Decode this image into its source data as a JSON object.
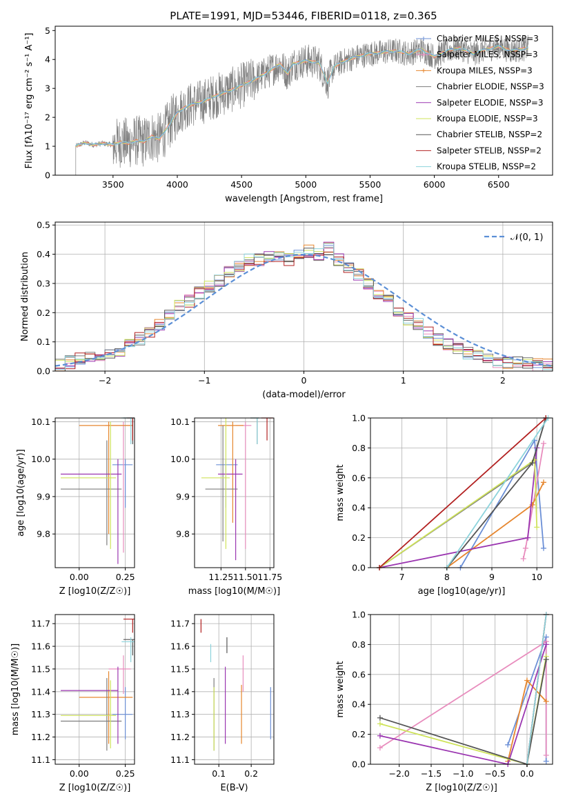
{
  "colors": {
    "chabrier_miles": "#6b8fd6",
    "salpeter_miles": "#e88cbd",
    "kroupa_miles": "#e6862e",
    "chabrier_elodie": "#7c7c7c",
    "salpeter_elodie": "#9a35b0",
    "kroupa_elodie": "#cfe35a",
    "chabrier_stelib": "#555555",
    "salpeter_stelib": "#b22020",
    "kroupa_stelib": "#8cd3dc",
    "normal": "#5b8fd6",
    "grid": "#b0b0b0"
  },
  "chart_data": [
    {
      "id": "spectrum",
      "type": "line",
      "title": "PLATE=1991, MJD=53446, FIBERID=0118, z=0.365",
      "xlabel": "wavelength [Angstrom, rest frame]",
      "ylabel": "Flux [fλ10⁻¹⁷ erg cm⁻² s⁻¹ A⁻¹]",
      "xlim": [
        3050,
        6920
      ],
      "ylim": [
        0,
        5.15
      ],
      "xticks": [
        3500,
        4000,
        4500,
        5000,
        5500,
        6000,
        6500
      ],
      "yticks": [
        0,
        1,
        2,
        3,
        4,
        5
      ],
      "grid": false,
      "legend_position": "right",
      "legend": [
        {
          "label": "Chabrier MILES, N_SSP=3",
          "color_key": "chabrier_miles"
        },
        {
          "label": "Salpeter MILES, N_SSP=3",
          "color_key": "salpeter_miles"
        },
        {
          "label": "Kroupa MILES, N_SSP=3",
          "color_key": "kroupa_miles"
        },
        {
          "label": "Chabrier ELODIE, N_SSP=3",
          "color_key": "chabrier_elodie"
        },
        {
          "label": "Salpeter ELODIE, N_SSP=3",
          "color_key": "salpeter_elodie"
        },
        {
          "label": "Kroupa ELODIE, N_SSP=3",
          "color_key": "kroupa_elodie"
        },
        {
          "label": "Chabrier STELIB, N_SSP=2",
          "color_key": "chabrier_stelib"
        },
        {
          "label": "Salpeter STELIB, N_SSP=2",
          "color_key": "salpeter_stelib"
        },
        {
          "label": "Kroupa STELIB, N_SSP=2",
          "color_key": "kroupa_stelib"
        }
      ],
      "model_curve": {
        "wavelength": [
          3210,
          3280,
          3350,
          3420,
          3500,
          3560,
          3620,
          3680,
          3740,
          3800,
          3860,
          3900,
          3960,
          4000,
          4060,
          4120,
          4200,
          4300,
          4400,
          4500,
          4600,
          4700,
          4800,
          4860,
          4900,
          5000,
          5100,
          5170,
          5220,
          5300,
          5400,
          5500,
          5600,
          5700,
          5800,
          5900,
          6000,
          6100,
          6200,
          6300,
          6400,
          6500,
          6600,
          6730
        ],
        "flux": [
          1.0,
          1.12,
          1.05,
          1.1,
          1.05,
          1.15,
          1.1,
          1.2,
          1.15,
          1.35,
          1.25,
          1.5,
          1.9,
          2.15,
          2.35,
          2.45,
          2.55,
          2.75,
          2.9,
          3.1,
          3.3,
          3.55,
          3.85,
          3.5,
          3.85,
          3.95,
          3.9,
          3.2,
          3.75,
          3.95,
          4.1,
          4.2,
          4.25,
          4.3,
          4.2,
          4.35,
          4.1,
          4.3,
          4.4,
          4.2,
          4.35,
          4.45,
          4.3,
          4.4
        ]
      }
    },
    {
      "id": "residuals",
      "type": "bar",
      "xlabel": "(data-model)/error",
      "ylabel": "Normed distribution",
      "xlim": [
        -2.5,
        2.5
      ],
      "ylim": [
        0,
        0.51
      ],
      "xticks": [
        -2,
        -1,
        0,
        1,
        2
      ],
      "yticks": [
        0.0,
        0.1,
        0.2,
        0.3,
        0.4,
        0.5
      ],
      "grid": true,
      "legend_position": "top-right",
      "normal_label": "𝒩(0, 1)",
      "bin_width": 0.1,
      "mean_hist": [
        0.02,
        0.03,
        0.04,
        0.05,
        0.05,
        0.06,
        0.07,
        0.09,
        0.11,
        0.13,
        0.16,
        0.19,
        0.22,
        0.24,
        0.27,
        0.29,
        0.31,
        0.34,
        0.36,
        0.38,
        0.38,
        0.39,
        0.39,
        0.38,
        0.4,
        0.41,
        0.4,
        0.42,
        0.38,
        0.36,
        0.33,
        0.3,
        0.27,
        0.24,
        0.21,
        0.18,
        0.16,
        0.13,
        0.11,
        0.09,
        0.08,
        0.06,
        0.05,
        0.04,
        0.03,
        0.03,
        0.03,
        0.03,
        0.02,
        0.02
      ]
    },
    {
      "id": "age-vs-z",
      "type": "scatter",
      "xlabel": "Z [log10(Z/Z☉)]",
      "ylabel": "age  [log10(age/yr)]",
      "xlim": [
        -0.13,
        0.3
      ],
      "ylim": [
        9.71,
        10.11
      ],
      "xticks": [
        0.0,
        0.25
      ],
      "yticks": [
        9.8,
        9.9,
        10.0,
        10.1
      ],
      "grid": true,
      "points": [
        {
          "c": "chabrier_miles",
          "x": 0.25,
          "y": 9.985,
          "xe": [
            0.18,
            0.29
          ],
          "ye": [
            9.87,
            10.0
          ]
        },
        {
          "c": "salpeter_miles",
          "x": 0.24,
          "y": 10.09,
          "xe": [
            0.14,
            0.28
          ],
          "ye": [
            9.75,
            10.1
          ]
        },
        {
          "c": "kroupa_miles",
          "x": 0.16,
          "y": 10.09,
          "xe": [
            0.0,
            0.29
          ],
          "ye": [
            9.8,
            10.1
          ]
        },
        {
          "c": "chabrier_elodie",
          "x": 0.15,
          "y": 9.92,
          "xe": [
            -0.1,
            0.23
          ],
          "ye": [
            9.77,
            10.05
          ]
        },
        {
          "c": "salpeter_elodie",
          "x": 0.21,
          "y": 9.96,
          "xe": [
            -0.1,
            0.23
          ],
          "ye": [
            9.72,
            10.0
          ]
        },
        {
          "c": "kroupa_elodie",
          "x": 0.17,
          "y": 9.95,
          "xe": [
            -0.1,
            0.2
          ],
          "ye": [
            9.76,
            10.1
          ]
        },
        {
          "c": "chabrier_stelib",
          "x": 0.29,
          "y": 10.11,
          "xe": [
            0.24,
            0.3
          ],
          "ye": [
            10.04,
            10.11
          ]
        },
        {
          "c": "salpeter_stelib",
          "x": 0.29,
          "y": 10.11,
          "xe": [
            0.26,
            0.3
          ],
          "ye": [
            10.05,
            10.11
          ]
        },
        {
          "c": "kroupa_stelib",
          "x": 0.28,
          "y": 10.11,
          "xe": [
            0.23,
            0.3
          ],
          "ye": [
            10.04,
            10.11
          ]
        }
      ]
    },
    {
      "id": "age-vs-mass",
      "type": "scatter",
      "xlabel": "mass [log10(M/M☉)]",
      "ylabel": "",
      "xlim": [
        10.98,
        11.79
      ],
      "ylim": [
        9.71,
        10.11
      ],
      "xticks": [
        11.25,
        11.5,
        11.75
      ],
      "yticks": [
        9.8,
        9.9,
        10.0,
        10.1
      ],
      "grid": true,
      "points": [
        {
          "c": "chabrier_miles",
          "x": 11.3,
          "y": 9.985,
          "xe": [
            11.2,
            11.42
          ],
          "ye": [
            9.87,
            10.0
          ]
        },
        {
          "c": "salpeter_miles",
          "x": 11.5,
          "y": 10.09,
          "xe": [
            11.4,
            11.56
          ],
          "ye": [
            9.76,
            10.1
          ]
        },
        {
          "c": "kroupa_miles",
          "x": 11.37,
          "y": 10.09,
          "xe": [
            11.22,
            11.48
          ],
          "ye": [
            9.83,
            10.1
          ]
        },
        {
          "c": "chabrier_elodie",
          "x": 11.27,
          "y": 9.92,
          "xe": [
            11.09,
            11.42
          ],
          "ye": [
            9.78,
            10.09
          ]
        },
        {
          "c": "salpeter_elodie",
          "x": 11.4,
          "y": 9.96,
          "xe": [
            11.22,
            11.47
          ],
          "ye": [
            9.73,
            10.0
          ]
        },
        {
          "c": "kroupa_elodie",
          "x": 11.3,
          "y": 9.95,
          "xe": [
            11.05,
            11.34
          ],
          "ye": [
            9.76,
            10.11
          ]
        },
        {
          "c": "chabrier_stelib",
          "x": 11.62,
          "y": 10.11,
          "xe": [
            11.55,
            11.64
          ],
          "ye": [
            10.04,
            10.11
          ]
        },
        {
          "c": "salpeter_stelib",
          "x": 11.72,
          "y": 10.11,
          "xe": [
            11.66,
            11.78
          ],
          "ye": [
            10.05,
            10.11
          ]
        },
        {
          "c": "kroupa_stelib",
          "x": 11.62,
          "y": 10.11,
          "xe": [
            11.55,
            11.64
          ],
          "ye": [
            10.04,
            10.11
          ]
        }
      ]
    },
    {
      "id": "massweight-vs-age",
      "type": "line",
      "xlabel": "age  [log10(age/yr)]",
      "ylabel": "mass weight",
      "xlim": [
        6.3,
        10.35
      ],
      "ylim": [
        0.0,
        1.0
      ],
      "xticks": [
        7,
        8,
        9,
        10
      ],
      "yticks": [
        0.0,
        0.2,
        0.4,
        0.6,
        0.8,
        1.0
      ],
      "grid": true,
      "series": [
        {
          "c": "chabrier_miles",
          "x": [
            8.3,
            9.95,
            10.15
          ],
          "y": [
            0.0,
            0.85,
            0.13
          ]
        },
        {
          "c": "salpeter_miles",
          "x": [
            9.7,
            9.75,
            10.15
          ],
          "y": [
            0.06,
            0.13,
            0.83
          ]
        },
        {
          "c": "kroupa_miles",
          "x": [
            8.0,
            9.9,
            10.15
          ],
          "y": [
            0.0,
            0.42,
            0.57
          ]
        },
        {
          "c": "chabrier_elodie",
          "x": [
            6.5,
            9.9,
            10.2
          ],
          "y": [
            0.0,
            0.7,
            1.0
          ]
        },
        {
          "c": "salpeter_elodie",
          "x": [
            6.5,
            9.8,
            10.0
          ],
          "y": [
            0.0,
            0.2,
            0.8
          ]
        },
        {
          "c": "kroupa_elodie",
          "x": [
            6.5,
            9.95,
            10.0
          ],
          "y": [
            0.0,
            0.72,
            0.27
          ]
        },
        {
          "c": "chabrier_stelib",
          "x": [
            8.0,
            9.9,
            10.2
          ],
          "y": [
            0.0,
            0.7,
            1.0
          ]
        },
        {
          "c": "salpeter_stelib",
          "x": [
            6.5,
            10.2
          ],
          "y": [
            0.0,
            1.0
          ]
        },
        {
          "c": "kroupa_stelib",
          "x": [
            8.0,
            10.25
          ],
          "y": [
            0.0,
            1.0
          ]
        }
      ]
    },
    {
      "id": "mass-vs-z",
      "type": "scatter",
      "xlabel": "Z [log10(Z/Z☉)]",
      "ylabel": "mass [log10(M/M☉)]",
      "xlim": [
        -0.13,
        0.3
      ],
      "ylim": [
        11.08,
        11.74
      ],
      "xticks": [
        0.0,
        0.25
      ],
      "yticks": [
        11.1,
        11.2,
        11.3,
        11.4,
        11.5,
        11.6,
        11.7
      ],
      "grid": true,
      "points": [
        {
          "c": "chabrier_miles",
          "x": 0.25,
          "y": 11.3,
          "xe": [
            0.18,
            0.29
          ],
          "ye": [
            11.19,
            11.42
          ]
        },
        {
          "c": "salpeter_miles",
          "x": 0.24,
          "y": 11.5,
          "xe": [
            0.16,
            0.28
          ],
          "ye": [
            11.39,
            11.56
          ]
        },
        {
          "c": "kroupa_miles",
          "x": 0.16,
          "y": 11.375,
          "xe": [
            0.0,
            0.29
          ],
          "ye": [
            11.17,
            11.49
          ]
        },
        {
          "c": "chabrier_elodie",
          "x": 0.15,
          "y": 11.27,
          "xe": [
            -0.1,
            0.23
          ],
          "ye": [
            11.14,
            11.46
          ]
        },
        {
          "c": "salpeter_elodie",
          "x": 0.21,
          "y": 11.405,
          "xe": [
            -0.1,
            0.21
          ],
          "ye": [
            11.17,
            11.51
          ]
        },
        {
          "c": "kroupa_elodie",
          "x": 0.17,
          "y": 11.295,
          "xe": [
            -0.1,
            0.2
          ],
          "ye": [
            11.15,
            11.45
          ]
        },
        {
          "c": "chabrier_stelib",
          "x": 0.29,
          "y": 11.63,
          "xe": [
            0.24,
            0.3
          ],
          "ye": [
            11.56,
            11.63
          ]
        },
        {
          "c": "salpeter_stelib",
          "x": 0.29,
          "y": 11.72,
          "xe": [
            0.24,
            0.3
          ],
          "ye": [
            11.66,
            11.72
          ]
        },
        {
          "c": "kroupa_stelib",
          "x": 0.28,
          "y": 11.62,
          "xe": [
            0.23,
            0.3
          ],
          "ye": [
            11.53,
            11.64
          ]
        }
      ]
    },
    {
      "id": "mass-vs-ebv",
      "type": "scatter",
      "xlabel": "E(B-V)",
      "ylabel": "",
      "xlim": [
        0.025,
        0.27
      ],
      "ylim": [
        11.08,
        11.74
      ],
      "xticks": [
        0.1,
        0.2
      ],
      "yticks": [
        11.1,
        11.2,
        11.3,
        11.4,
        11.5,
        11.6,
        11.7
      ],
      "grid": true,
      "points": [
        {
          "c": "chabrier_miles",
          "x": 0.26,
          "y": 11.3,
          "ye": [
            11.19,
            11.42
          ]
        },
        {
          "c": "salpeter_miles",
          "x": 0.175,
          "y": 11.5,
          "ye": [
            11.4,
            11.56
          ]
        },
        {
          "c": "kroupa_miles",
          "x": 0.17,
          "y": 11.375,
          "ye": [
            11.17,
            11.43
          ]
        },
        {
          "c": "chabrier_elodie",
          "x": 0.085,
          "y": 11.27,
          "ye": [
            11.14,
            11.46
          ]
        },
        {
          "c": "salpeter_elodie",
          "x": 0.12,
          "y": 11.405,
          "ye": [
            11.17,
            11.51
          ]
        },
        {
          "c": "kroupa_elodie",
          "x": 0.085,
          "y": 11.295,
          "ye": [
            11.14,
            11.42
          ]
        },
        {
          "c": "chabrier_stelib",
          "x": 0.125,
          "y": 11.63,
          "ye": [
            11.57,
            11.64
          ]
        },
        {
          "c": "salpeter_stelib",
          "x": 0.045,
          "y": 11.72,
          "ye": [
            11.66,
            11.72
          ]
        },
        {
          "c": "kroupa_stelib",
          "x": 0.075,
          "y": 11.62,
          "ye": [
            11.53,
            11.61
          ]
        }
      ]
    },
    {
      "id": "massweight-vs-z",
      "type": "line",
      "xlabel": "Z [log10(Z/Z☉)]",
      "ylabel": "mass weight",
      "xlim": [
        -2.45,
        0.4
      ],
      "ylim": [
        0.0,
        1.0
      ],
      "xticks": [
        -2.0,
        -1.5,
        -1.0,
        -0.5,
        0.0
      ],
      "yticks": [
        0.0,
        0.2,
        0.4,
        0.6,
        0.8,
        1.0
      ],
      "grid": true,
      "series": [
        {
          "c": "chabrier_miles",
          "x": [
            -0.3,
            0.3,
            0.3
          ],
          "y": [
            0.13,
            0.85,
            0.02
          ]
        },
        {
          "c": "salpeter_miles",
          "x": [
            -2.3,
            0.3,
            0.3
          ],
          "y": [
            0.11,
            0.82,
            0.06
          ]
        },
        {
          "c": "kroupa_miles",
          "x": [
            -0.3,
            -0.0,
            0.3
          ],
          "y": [
            0.02,
            0.56,
            0.42
          ]
        },
        {
          "c": "chabrier_elodie",
          "x": [
            0.0,
            0.3
          ],
          "y": [
            0.0,
            1.0
          ]
        },
        {
          "c": "salpeter_elodie",
          "x": [
            -2.3,
            -0.3,
            0.3
          ],
          "y": [
            0.19,
            0.0,
            0.8
          ]
        },
        {
          "c": "kroupa_elodie",
          "x": [
            -2.3,
            0.0,
            0.3
          ],
          "y": [
            0.27,
            0.0,
            0.72
          ]
        },
        {
          "c": "chabrier_stelib",
          "x": [
            -2.3,
            0.0,
            0.3
          ],
          "y": [
            0.31,
            0.0,
            0.7
          ]
        },
        {
          "c": "salpeter_stelib",
          "x": [
            0.0,
            0.3
          ],
          "y": [
            0.0,
            1.0
          ]
        },
        {
          "c": "kroupa_stelib",
          "x": [
            0.0,
            0.3
          ],
          "y": [
            0.0,
            1.0
          ]
        }
      ]
    }
  ]
}
